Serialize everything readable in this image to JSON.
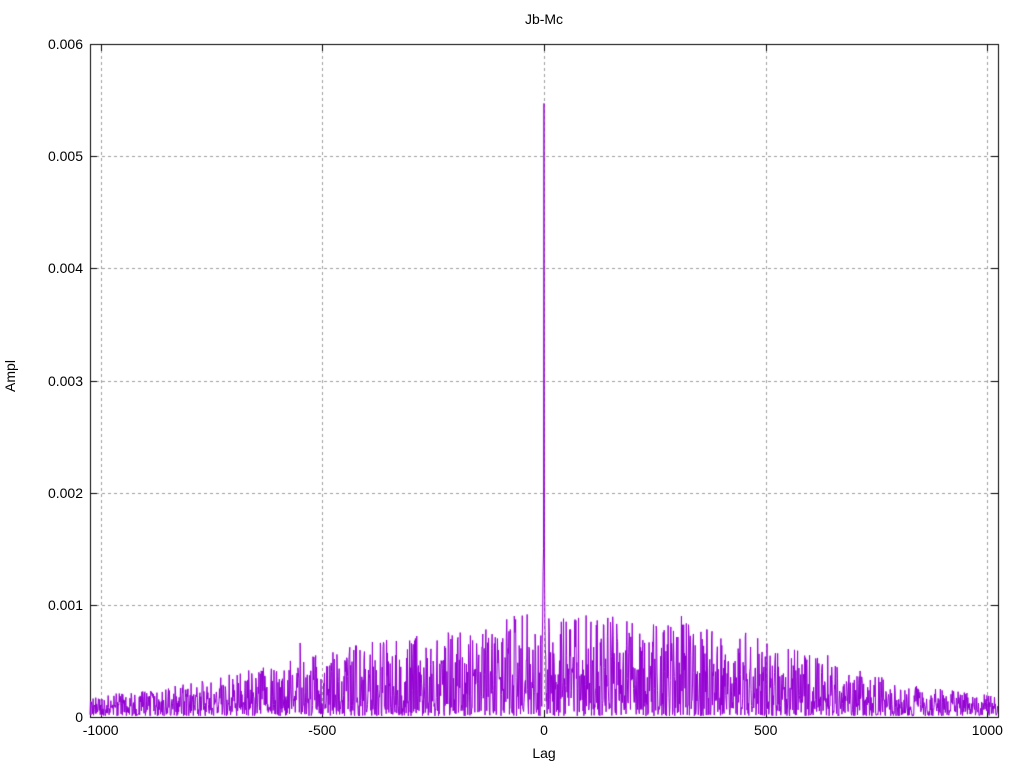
{
  "chart_data": {
    "type": "line",
    "title": "Jb-Mc",
    "xlabel": "Lag",
    "ylabel": "Ampl",
    "xlim": [
      -1024,
      1024
    ],
    "ylim": [
      0,
      0.006
    ],
    "x_ticks": [
      -1000,
      -500,
      0,
      500,
      1000
    ],
    "x_tick_labels": [
      "-1000",
      "-500",
      "0",
      "500",
      "1000"
    ],
    "y_ticks": [
      0,
      0.001,
      0.002,
      0.003,
      0.004,
      0.005,
      0.006
    ],
    "y_tick_labels": [
      "0",
      "0.001",
      "0.002",
      "0.003",
      "0.004",
      "0.005",
      "0.006"
    ],
    "grid": true,
    "legend_visible": false,
    "colors": {
      "line": "#9400d3",
      "grid": "#9e9e9e",
      "border": "#000000",
      "text": "#000000",
      "background": "#ffffff"
    },
    "main_peak": {
      "lag": 0,
      "value": 0.00547
    },
    "peak_region": [
      [
        -4,
        0.00065
      ],
      [
        -3,
        0.0009
      ],
      [
        -2,
        0.0013
      ],
      [
        -1,
        0.0015
      ],
      [
        0,
        0.00547
      ],
      [
        1,
        0.0014
      ],
      [
        2,
        0.00085
      ],
      [
        3,
        0.0006
      ]
    ],
    "notable_spikes": [
      [
        -550,
        0.00066
      ],
      [
        -290,
        0.0007
      ],
      [
        -84,
        0.00087
      ],
      [
        60,
        0.00078
      ],
      [
        118,
        0.00082
      ],
      [
        310,
        0.0009
      ],
      [
        455,
        0.00075
      ],
      [
        640,
        0.00055
      ]
    ],
    "noise_envelope": [
      [
        -1024,
        0.00012
      ],
      [
        -800,
        0.0002
      ],
      [
        -600,
        0.00032
      ],
      [
        -400,
        0.00045
      ],
      [
        -200,
        0.00055
      ],
      [
        0,
        0.00065
      ],
      [
        200,
        0.0006
      ],
      [
        400,
        0.00055
      ],
      [
        600,
        0.0004
      ],
      [
        800,
        0.0002
      ],
      [
        1024,
        0.00012
      ]
    ],
    "synthesis": {
      "seed": 9,
      "n_points": 2048,
      "shape_exponent": 1.7,
      "gain": 1.45,
      "floor": 1e-05
    }
  }
}
